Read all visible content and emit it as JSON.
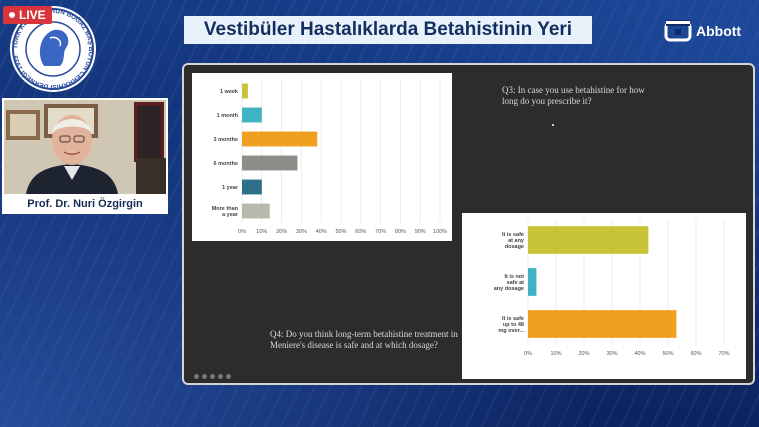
{
  "header": {
    "title": "Vestibüler Hastalıklarda Betahistinin Yeri",
    "brand": "Abbott",
    "live_label": "LIVE",
    "seal_text": "TÜRK KULAK BURUN BOĞAZ BAŞ BOYUN CERRAHİSİ DERNEĞİ 1939",
    "colors": {
      "title_bg": "#e9f1fa",
      "title_fg": "#12305f",
      "page_bg": "#0f2a66"
    }
  },
  "speaker": {
    "name": "Prof. Dr. Nuri Özgirgin"
  },
  "slide": {
    "q3": "Q3: In case you use betahistine for how long do you prescribe it?",
    "q4": "Q4: Do you think long-term betahistine treatment in Meniere's disease is safe and at which dosage?"
  },
  "chart_data": [
    {
      "type": "bar",
      "orientation": "horizontal",
      "categories": [
        "1 week",
        "1 month",
        "3 months",
        "6 months",
        "1 year",
        "More than a year"
      ],
      "values": [
        3,
        10,
        38,
        28,
        10,
        14
      ],
      "colors": [
        "#c8c43a",
        "#3fb3c3",
        "#f0a020",
        "#8e8e88",
        "#2f6f8a",
        "#b9b8ae"
      ],
      "x_ticks": [
        "0%",
        "10%",
        "20%",
        "30%",
        "40%",
        "50%",
        "60%",
        "70%",
        "80%",
        "90%",
        "100%"
      ],
      "xlim": [
        0,
        100
      ],
      "grid": true
    },
    {
      "type": "bar",
      "orientation": "horizontal",
      "categories": [
        "It is safe at any dosage",
        "It is not safe at any dosage",
        "It is safe up to 48 mg over..."
      ],
      "values": [
        43,
        3,
        53
      ],
      "colors": [
        "#c8c43a",
        "#3fb3c3",
        "#f0a020"
      ],
      "x_ticks": [
        "0%",
        "10%",
        "20%",
        "30%",
        "40%",
        "50%",
        "60%",
        "70%"
      ],
      "xlim": [
        0,
        70
      ],
      "grid": true
    }
  ]
}
